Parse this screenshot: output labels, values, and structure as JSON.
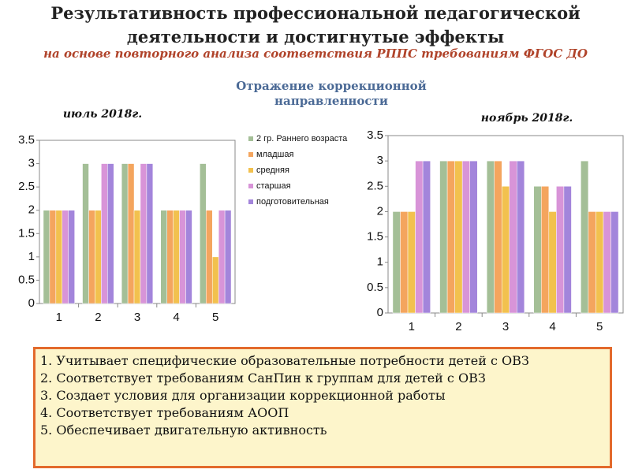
{
  "title": "Результативность профессиональной педагогической деятельности и достигнутые эффекты",
  "subtitle": "на основе повторного анализа  соответствия РППС требованиям ФГОС ДО",
  "section_title": "Отражение коррекционной направленности",
  "notes": [
    "1. Учитывает специфические образовательные потребности детей с ОВЗ",
    "2. Соответствует требованиям СанПин к группам для детей с ОВЗ",
    "3. Создает условия для организации коррекционной работы",
    "4. Соответствует требованиям АООП",
    "5. Обеспечивает двигательную активность"
  ],
  "chart_data": [
    {
      "type": "bar",
      "title": "июль 2018г.",
      "categories": [
        "1",
        "2",
        "3",
        "4",
        "5"
      ],
      "series": [
        {
          "name": "2 гр. Раннего возраста",
          "color": "#a4bf97",
          "values": [
            2,
            3,
            3,
            2,
            3
          ]
        },
        {
          "name": "младшая",
          "color": "#f4a55e",
          "values": [
            2,
            2,
            3,
            2,
            2
          ]
        },
        {
          "name": "средняя",
          "color": "#f2c14e",
          "values": [
            2,
            2,
            2,
            2,
            1
          ]
        },
        {
          "name": "старшая",
          "color": "#d894d8",
          "values": [
            2,
            3,
            3,
            2,
            2
          ]
        },
        {
          "name": "подготовительная",
          "color": "#a385db",
          "values": [
            2,
            3,
            3,
            2,
            2
          ]
        }
      ],
      "ylim": [
        0,
        3.5
      ],
      "yticks": [
        0,
        0.5,
        1,
        1.5,
        2,
        2.5,
        3,
        3.5
      ],
      "legend": "right"
    },
    {
      "type": "bar",
      "title": "ноябрь 2018г.",
      "categories": [
        "1",
        "2",
        "3",
        "4",
        "5"
      ],
      "series": [
        {
          "color": "#a4bf97",
          "values": [
            2,
            3,
            3,
            2.5,
            3
          ]
        },
        {
          "color": "#f4a55e",
          "values": [
            2,
            3,
            3,
            2.5,
            2
          ]
        },
        {
          "color": "#f2c14e",
          "values": [
            2,
            3,
            2.5,
            2,
            2
          ]
        },
        {
          "color": "#d894d8",
          "values": [
            3,
            3,
            3,
            2.5,
            2
          ]
        },
        {
          "color": "#a385db",
          "values": [
            3,
            3,
            3,
            2.5,
            2
          ]
        }
      ],
      "ylim": [
        0,
        3.5
      ],
      "yticks": [
        0,
        0.5,
        1,
        1.5,
        2,
        2.5,
        3,
        3.5
      ]
    }
  ]
}
